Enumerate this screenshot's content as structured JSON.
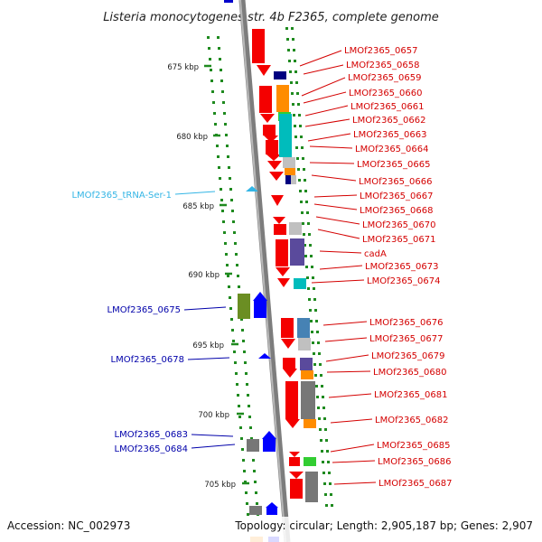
{
  "title": "Listeria monocytogenes str. 4b F2365, complete genome",
  "footer": {
    "accession": "Accession: NC_002973",
    "topology": "Topology: circular; Length: 2,905,187 bp; Genes: 2,907"
  },
  "colors": {
    "backbone": "#8a8a8a",
    "right_label": "#d40000",
    "left_label": "#0000aa",
    "trna_label": "#33b5e5",
    "tick": "#1f8a1f",
    "dots": "#1f8a1f"
  },
  "ticks": [
    "675 kbp",
    "680 kbp",
    "685 kbp",
    "690 kbp",
    "695 kbp",
    "700 kbp",
    "705 kbp"
  ],
  "right_labels": [
    "LMOf2365_0657",
    "LMOf2365_0658",
    "LMOf2365_0659",
    "LMOf2365_0660",
    "LMOf2365_0661",
    "LMOf2365_0662",
    "LMOf2365_0663",
    "LMOf2365_0664",
    "LMOf2365_0665",
    "LMOf2365_0666",
    "LMOf2365_0667",
    "LMOf2365_0668",
    "LMOf2365_0670",
    "LMOf2365_0671",
    "cadA",
    "LMOf2365_0673",
    "LMOf2365_0674",
    "LMOf2365_0676",
    "LMOf2365_0677",
    "LMOf2365_0679",
    "LMOf2365_0680",
    "LMOf2365_0681",
    "LMOf2365_0682",
    "LMOf2365_0685",
    "LMOf2365_0686",
    "LMOf2365_0687"
  ],
  "left_labels": [
    "LMOf2365_tRNA-Ser-1",
    "LMOf2365_0675",
    "LMOf2365_0678",
    "LMOf2365_0683",
    "LMOf2365_0684"
  ]
}
